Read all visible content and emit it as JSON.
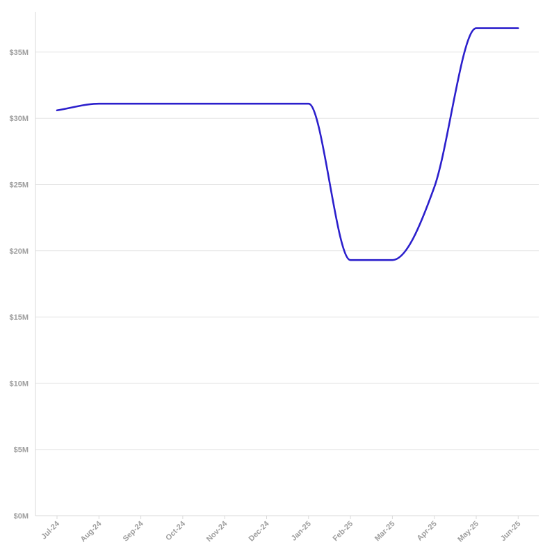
{
  "chart_data": {
    "type": "line",
    "title": "",
    "xlabel": "",
    "ylabel": "",
    "categories": [
      "Jul-24",
      "Aug-24",
      "Sep-24",
      "Oct-24",
      "Nov-24",
      "Dec-24",
      "Jan-25",
      "Feb-25",
      "Mar-25",
      "Apr-25",
      "May-25",
      "Jun-25"
    ],
    "series": [
      {
        "values": [
          30.6,
          31.1,
          31.1,
          31.1,
          31.1,
          31.1,
          31.1,
          19.3,
          19.3,
          24.8,
          36.8,
          36.8
        ]
      }
    ],
    "yticks": [
      0,
      5,
      10,
      15,
      20,
      25,
      30,
      35
    ],
    "ytick_labels": [
      "$0M",
      "$5M",
      "$10M",
      "$15M",
      "$20M",
      "$25M",
      "$30M",
      "$35M"
    ],
    "ylim": [
      0,
      35
    ],
    "grid": "horizontal",
    "line_color": "#2b1fcc",
    "curve": "smooth"
  }
}
